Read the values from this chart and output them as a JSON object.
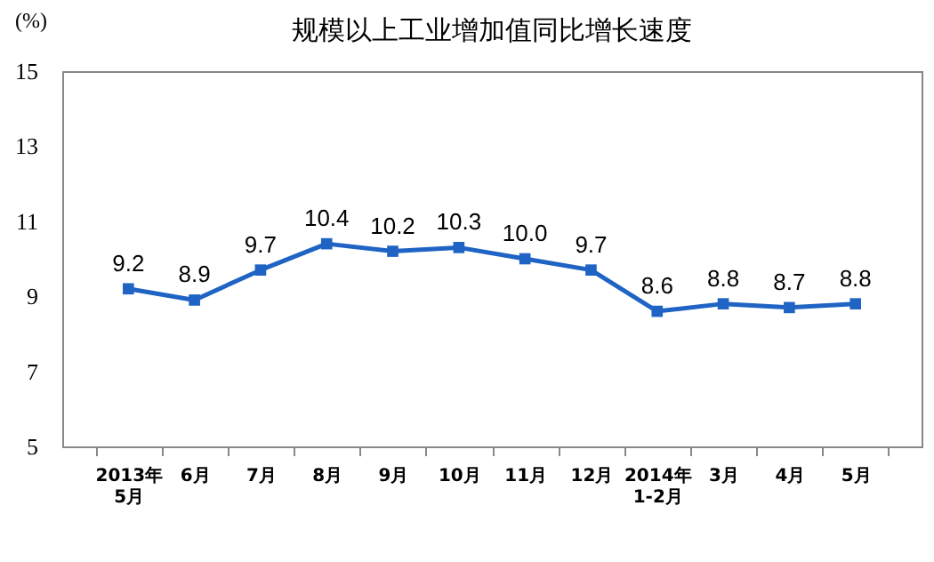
{
  "chart_data": {
    "type": "line",
    "title": "规模以上工业增加值同比增长速度",
    "ylabel": "(%)",
    "categories": [
      "2013年\n5月",
      "6月",
      "7月",
      "8月",
      "9月",
      "10月",
      "11月",
      "12月",
      "2014年\n1-2月",
      "3月",
      "4月",
      "5月"
    ],
    "series": [
      {
        "color": "#1f64c4",
        "values": [
          9.2,
          8.9,
          9.7,
          10.4,
          10.2,
          10.3,
          10.0,
          9.7,
          8.6,
          8.8,
          8.7,
          8.8
        ]
      }
    ],
    "value_labels": [
      "9.2",
      "8.9",
      "9.7",
      "10.4",
      "10.2",
      "10.3",
      "10.0",
      "9.7",
      "8.6",
      "8.8",
      "8.7",
      "8.8"
    ],
    "ylim": [
      5,
      15
    ],
    "yticks": [
      5,
      7,
      9,
      11,
      13,
      15
    ],
    "grid": false,
    "legend": false,
    "marker": "square",
    "line_style": "solid"
  }
}
